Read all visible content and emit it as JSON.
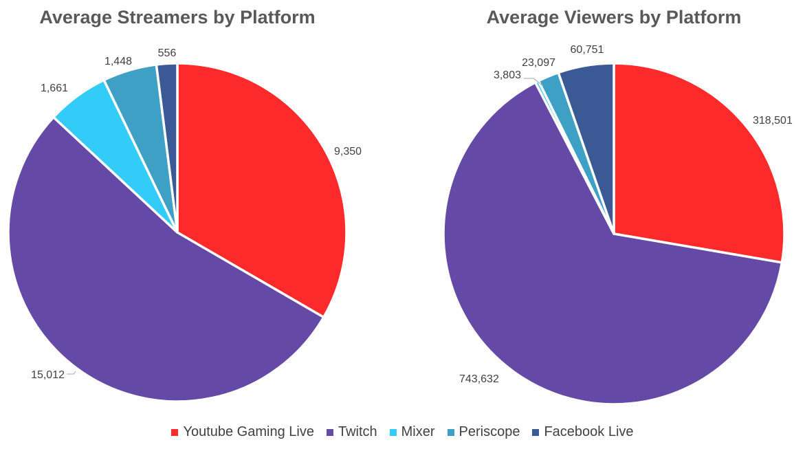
{
  "colors": {
    "Youtube Gaming Live": "#fc2a2b",
    "Twitch": "#6549a6",
    "Mixer": "#33cbf7",
    "Periscope": "#3fa0c5",
    "Facebook Live": "#3b5a95"
  },
  "legend": [
    "Youtube Gaming Live",
    "Twitch",
    "Mixer",
    "Periscope",
    "Facebook Live"
  ],
  "chart_data": [
    {
      "type": "pie",
      "title": "Average Streamers by Platform",
      "categories": [
        "Youtube Gaming Live",
        "Twitch",
        "Mixer",
        "Periscope",
        "Facebook Live"
      ],
      "values": [
        9350,
        15012,
        1661,
        1448,
        556
      ],
      "labels": [
        "9,350",
        "15,012",
        "1,661",
        "1,448",
        "556"
      ],
      "start": "12 o'clock",
      "direction": "clockwise",
      "legend_position": "bottom"
    },
    {
      "type": "pie",
      "title": "Average Viewers by Platform",
      "categories": [
        "Youtube Gaming Live",
        "Twitch",
        "Mixer",
        "Periscope",
        "Facebook Live"
      ],
      "values": [
        318501,
        743632,
        3803,
        23097,
        60751
      ],
      "labels": [
        "318,501",
        "743,632",
        "3,803",
        "23,097",
        "60,751"
      ],
      "start": "12 o'clock",
      "direction": "clockwise",
      "legend_position": "bottom"
    }
  ]
}
